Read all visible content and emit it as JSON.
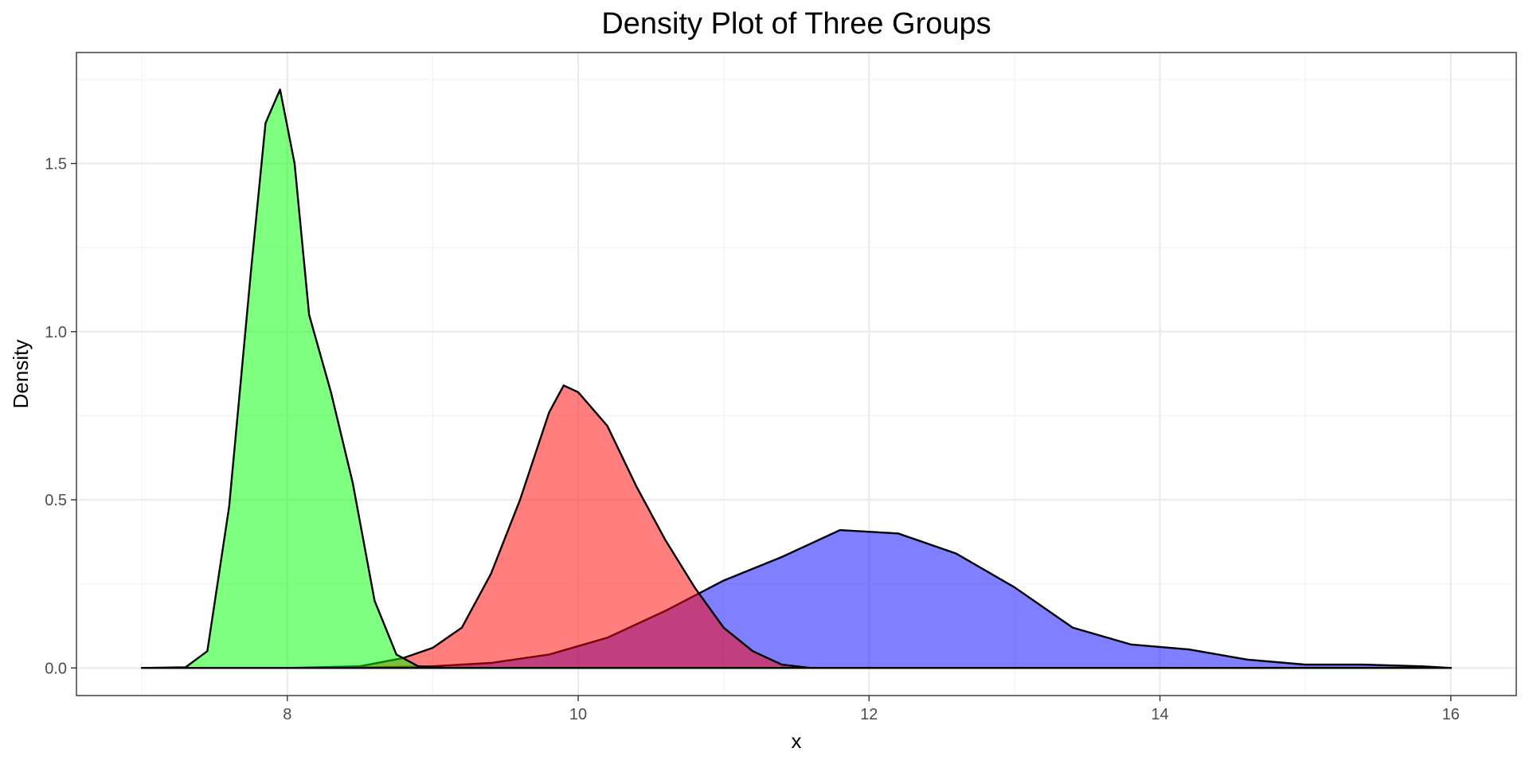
{
  "chart_data": {
    "type": "area",
    "title": "Density Plot of Three Groups",
    "xlabel": "x",
    "ylabel": "Density",
    "xlim": [
      6.55,
      16.45
    ],
    "ylim": [
      -0.082,
      1.83
    ],
    "x_ticks": [
      8,
      10,
      12,
      14,
      16
    ],
    "x_tick_labels": [
      "8",
      "10",
      "12",
      "14",
      "16"
    ],
    "y_ticks": [
      0.0,
      0.5,
      1.0,
      1.5
    ],
    "y_tick_labels": [
      "0.0",
      "0.5",
      "1.0",
      "1.5"
    ],
    "grid": true,
    "legend": "none",
    "series": [
      {
        "fill": "#0000FF",
        "x": [
          7.0,
          8.0,
          8.6,
          9.0,
          9.4,
          9.8,
          10.2,
          10.6,
          11.0,
          11.4,
          11.8,
          12.2,
          12.6,
          13.0,
          13.4,
          13.8,
          14.2,
          14.6,
          15.0,
          15.4,
          15.8,
          16.0
        ],
        "y": [
          0.0,
          0.0,
          0.002,
          0.005,
          0.015,
          0.04,
          0.09,
          0.17,
          0.26,
          0.33,
          0.41,
          0.4,
          0.34,
          0.24,
          0.12,
          0.07,
          0.055,
          0.025,
          0.01,
          0.01,
          0.005,
          0.0
        ]
      },
      {
        "fill": "#FF0000",
        "x": [
          7.0,
          8.0,
          8.5,
          8.8,
          9.0,
          9.2,
          9.4,
          9.6,
          9.8,
          9.9,
          10.0,
          10.2,
          10.4,
          10.6,
          10.8,
          11.0,
          11.2,
          11.4,
          11.6,
          12.0,
          16.0
        ],
        "y": [
          0.0,
          0.0,
          0.005,
          0.03,
          0.06,
          0.12,
          0.28,
          0.5,
          0.76,
          0.84,
          0.82,
          0.72,
          0.54,
          0.38,
          0.24,
          0.12,
          0.05,
          0.01,
          0.0,
          0.0,
          0.0
        ]
      },
      {
        "fill": "#00FF00",
        "x": [
          7.0,
          7.3,
          7.45,
          7.6,
          7.75,
          7.85,
          7.95,
          8.05,
          8.15,
          8.3,
          8.45,
          8.6,
          8.75,
          8.9,
          9.1,
          16.0
        ],
        "y": [
          0.0,
          0.002,
          0.05,
          0.48,
          1.18,
          1.62,
          1.72,
          1.5,
          1.05,
          0.82,
          0.55,
          0.2,
          0.04,
          0.005,
          0.0,
          0.0
        ]
      }
    ]
  }
}
